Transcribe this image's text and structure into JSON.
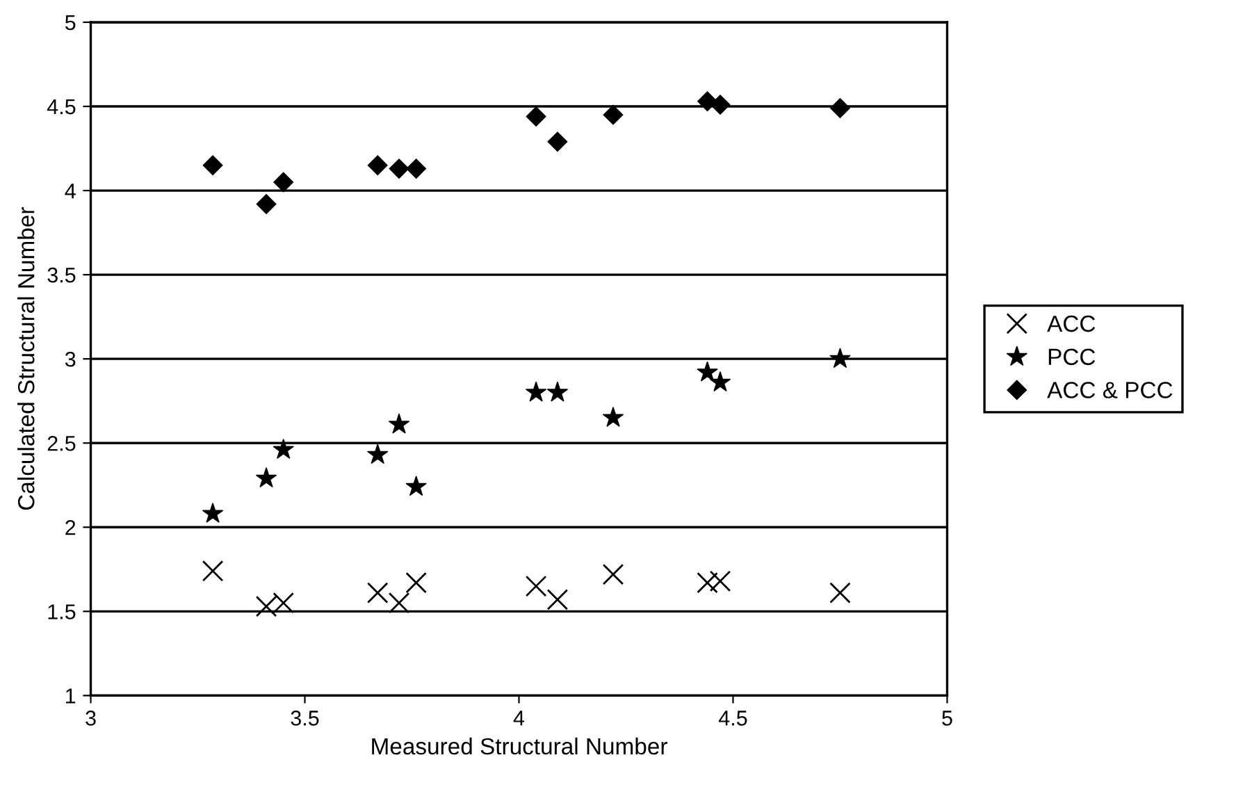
{
  "chart_data": {
    "type": "scatter",
    "xlabel": "Measured Structural Number",
    "ylabel": "Calculated Structural Number",
    "x": [
      3.285,
      3.41,
      3.45,
      3.67,
      3.72,
      3.76,
      4.04,
      4.09,
      4.22,
      4.44,
      4.47,
      4.75
    ],
    "series": [
      {
        "name": "ACC",
        "color": "#000000",
        "marker": "cross",
        "values": [
          1.74,
          1.53,
          1.55,
          1.61,
          1.55,
          1.67,
          1.65,
          1.57,
          1.72,
          1.67,
          1.68,
          1.61
        ]
      },
      {
        "name": "PCC",
        "color": "#000000",
        "marker": "star",
        "values": [
          2.08,
          2.29,
          2.46,
          2.43,
          2.61,
          2.24,
          2.8,
          2.8,
          2.65,
          2.92,
          2.86,
          3.0
        ]
      },
      {
        "name": "ACC & PCC",
        "color": "#000000",
        "marker": "diamond",
        "values": [
          4.15,
          3.92,
          4.05,
          4.15,
          4.13,
          4.13,
          4.44,
          4.29,
          4.45,
          4.53,
          4.51,
          4.49
        ]
      }
    ],
    "xlim": [
      3,
      5
    ],
    "ylim": [
      1,
      5
    ],
    "xticks": [
      3,
      3.5,
      4,
      4.5,
      5
    ],
    "yticks": [
      1,
      1.5,
      2,
      2.5,
      3,
      3.5,
      4,
      4.5,
      5
    ],
    "grid": "y",
    "legend": "right"
  }
}
